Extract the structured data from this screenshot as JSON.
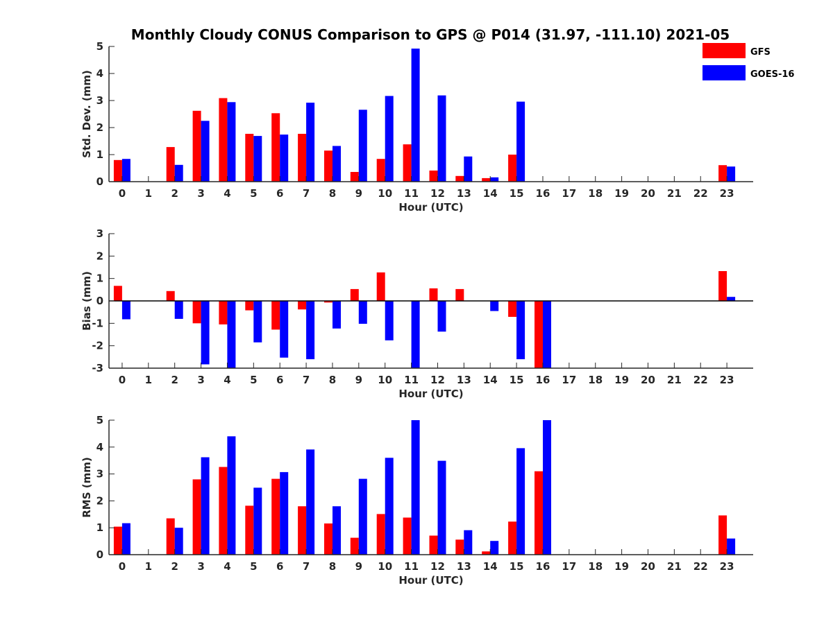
{
  "title": "Monthly Cloudy CONUS Comparison to GPS @ P014 (31.97, -111.10) 2021-05",
  "legend": {
    "position": "top-right",
    "entries": [
      {
        "label": "GFS",
        "color": "#ff0000"
      },
      {
        "label": "GOES-16",
        "color": "#0000ff"
      }
    ]
  },
  "chart_data": [
    {
      "type": "bar",
      "xlabel": "Hour (UTC)",
      "ylabel": "Std. Dev. (mm)",
      "ylim": [
        0,
        5
      ],
      "yticks": [
        0,
        1,
        2,
        3,
        4,
        5
      ],
      "categories": [
        "0",
        "1",
        "2",
        "3",
        "4",
        "5",
        "6",
        "7",
        "8",
        "9",
        "10",
        "11",
        "12",
        "13",
        "14",
        "15",
        "16",
        "17",
        "18",
        "19",
        "20",
        "21",
        "22",
        "23"
      ],
      "series": [
        {
          "name": "GFS",
          "color": "#ff0000",
          "values": [
            0.8,
            null,
            1.28,
            2.62,
            3.09,
            1.77,
            2.53,
            1.77,
            1.15,
            0.36,
            0.84,
            1.38,
            0.41,
            0.21,
            0.13,
            1.0,
            null,
            null,
            null,
            null,
            null,
            null,
            null,
            0.61
          ]
        },
        {
          "name": "GOES-16",
          "color": "#0000ff",
          "values": [
            0.84,
            null,
            0.62,
            2.25,
            2.94,
            1.69,
            1.74,
            2.92,
            1.32,
            2.66,
            3.17,
            4.92,
            3.19,
            0.93,
            0.16,
            2.96,
            null,
            null,
            null,
            null,
            null,
            null,
            null,
            0.56
          ]
        }
      ]
    },
    {
      "type": "bar",
      "xlabel": "Hour (UTC)",
      "ylabel": "Bias (mm)",
      "ylim": [
        -3,
        3
      ],
      "yticks": [
        -3,
        -2,
        -1,
        0,
        1,
        2,
        3
      ],
      "categories": [
        "0",
        "1",
        "2",
        "3",
        "4",
        "5",
        "6",
        "7",
        "8",
        "9",
        "10",
        "11",
        "12",
        "13",
        "14",
        "15",
        "16",
        "17",
        "18",
        "19",
        "20",
        "21",
        "22",
        "23"
      ],
      "series": [
        {
          "name": "GFS",
          "color": "#ff0000",
          "values": [
            0.67,
            null,
            0.44,
            -1.0,
            -1.05,
            -0.42,
            -1.28,
            -0.38,
            -0.07,
            0.53,
            1.27,
            null,
            0.56,
            0.53,
            null,
            -0.71,
            -3.0,
            null,
            null,
            null,
            null,
            null,
            null,
            1.33
          ]
        },
        {
          "name": "GOES-16",
          "color": "#0000ff",
          "values": [
            -0.82,
            null,
            -0.8,
            -2.83,
            -3.0,
            -1.85,
            -2.53,
            -2.6,
            -1.23,
            -1.02,
            -1.76,
            -3.0,
            -1.37,
            null,
            -0.45,
            -2.6,
            -3.0,
            null,
            null,
            null,
            null,
            null,
            null,
            0.18
          ]
        }
      ]
    },
    {
      "type": "bar",
      "xlabel": "Hour (UTC)",
      "ylabel": "RMS (mm)",
      "ylim": [
        0,
        5
      ],
      "yticks": [
        0,
        1,
        2,
        3,
        4,
        5
      ],
      "categories": [
        "0",
        "1",
        "2",
        "3",
        "4",
        "5",
        "6",
        "7",
        "8",
        "9",
        "10",
        "11",
        "12",
        "13",
        "14",
        "15",
        "16",
        "17",
        "18",
        "19",
        "20",
        "21",
        "22",
        "23"
      ],
      "series": [
        {
          "name": "GFS",
          "color": "#ff0000",
          "values": [
            1.04,
            null,
            1.35,
            2.8,
            3.26,
            1.82,
            2.82,
            1.8,
            1.16,
            0.63,
            1.51,
            1.38,
            0.71,
            0.56,
            0.12,
            1.23,
            3.1,
            null,
            null,
            null,
            null,
            null,
            null,
            1.46
          ]
        },
        {
          "name": "GOES-16",
          "color": "#0000ff",
          "values": [
            1.17,
            null,
            1.0,
            3.62,
            4.4,
            2.49,
            3.07,
            3.91,
            1.8,
            2.82,
            3.6,
            5.0,
            3.49,
            0.91,
            0.51,
            3.96,
            5.0,
            null,
            null,
            null,
            null,
            null,
            null,
            0.6
          ]
        }
      ]
    }
  ]
}
